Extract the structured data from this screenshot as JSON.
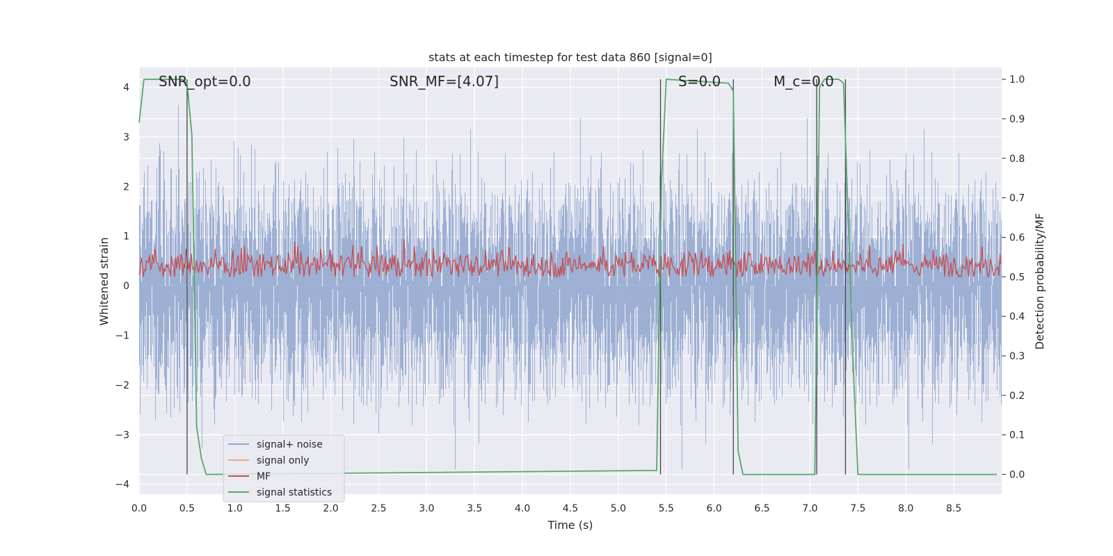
{
  "chart_data": {
    "type": "line",
    "title": "stats at each timestep for test data 860 [signal=0]",
    "xlabel": "Time (s)",
    "ylabel": "Whitened strain",
    "ylabel_right": "Detection probability/MF",
    "xlim": [
      0.0,
      9.0
    ],
    "ylim": [
      -4.2,
      4.4
    ],
    "ylim_right": [
      -0.05,
      1.03
    ],
    "x_ticks": [
      "0.0",
      "0.5",
      "1.0",
      "1.5",
      "2.0",
      "2.5",
      "3.0",
      "3.5",
      "4.0",
      "4.5",
      "5.0",
      "5.5",
      "6.0",
      "6.5",
      "7.0",
      "7.5",
      "8.0",
      "8.5"
    ],
    "y_ticks": [
      "4",
      "3",
      "2",
      "1",
      "0",
      "−1",
      "−2",
      "−3",
      "−4"
    ],
    "y_ticks_right": [
      "1.0",
      "0.9",
      "0.8",
      "0.7",
      "0.6",
      "0.5",
      "0.4",
      "0.3",
      "0.2",
      "0.1",
      "0.0"
    ],
    "grid": true,
    "legend_position": "lower-left",
    "annotations": {
      "snr_opt": "SNR_opt=0.0",
      "snr_mf": "SNR_MF=[4.07]",
      "s": "S=0.0",
      "mc": "M_c=0.0"
    },
    "series": [
      {
        "name": "signal+ noise",
        "color": "#8fa6cf",
        "style": "noise band",
        "approx_range": [
          -3.7,
          3.7
        ]
      },
      {
        "name": "signal only",
        "color": "#e8a88a",
        "values": []
      },
      {
        "name": "MF",
        "color": "#c44e52",
        "style": "noise band on right axis",
        "approx_range_right": [
          0.5,
          0.59
        ]
      },
      {
        "name": "signal statistics",
        "color": "#55a868",
        "axis": "right",
        "x": [
          0.0,
          0.05,
          0.45,
          0.5,
          0.55,
          0.6,
          0.65,
          0.7,
          5.4,
          5.45,
          5.5,
          6.15,
          6.2,
          6.25,
          6.3,
          7.05,
          7.1,
          7.15,
          7.2,
          7.3,
          7.35,
          7.45,
          7.5,
          8.95
        ],
        "y": [
          0.89,
          1.0,
          1.0,
          0.99,
          0.86,
          0.12,
          0.04,
          0.0,
          0.01,
          0.74,
          1.0,
          0.99,
          0.97,
          0.06,
          0.0,
          0.0,
          0.98,
          1.0,
          1.0,
          1.0,
          0.99,
          0.28,
          0.0,
          0.0
        ]
      }
    ],
    "vertical_lines": [
      0.5,
      5.44,
      6.2,
      7.07,
      7.37
    ]
  }
}
